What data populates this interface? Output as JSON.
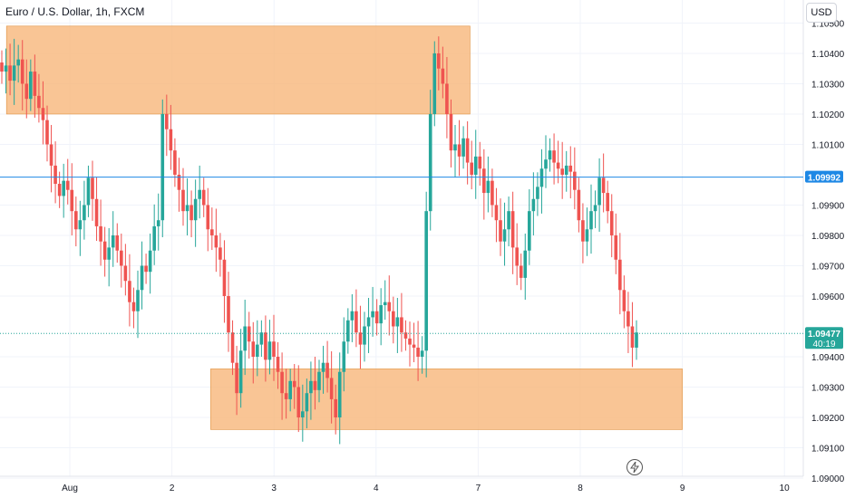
{
  "header": {
    "title": "Euro / U.S. Dollar, 1h, FXCM",
    "currency_button": "USD"
  },
  "chart_data": {
    "type": "candlestick",
    "title": "Euro / U.S. Dollar, 1h, FXCM",
    "ylim": [
      1.09,
      1.1057
    ],
    "y_ticks": [
      "1.10500",
      "1.10400",
      "1.10300",
      "1.10200",
      "1.10100",
      "1.09900",
      "1.09800",
      "1.09700",
      "1.09600",
      "1.09400",
      "1.09300",
      "1.09200",
      "1.09100",
      "1.09000"
    ],
    "x_ticks": [
      {
        "label": "Aug",
        "day": 1
      },
      {
        "label": "2",
        "day": 2
      },
      {
        "label": "3",
        "day": 3
      },
      {
        "label": "4",
        "day": 4
      },
      {
        "label": "7",
        "day": 5
      },
      {
        "label": "8",
        "day": 6
      },
      {
        "label": "9",
        "day": 7
      },
      {
        "label": "10",
        "day": 8
      }
    ],
    "price_levels": [
      {
        "value": 1.09992,
        "label": "1.09992",
        "color": "#1e88e5",
        "style": "solid"
      },
      {
        "value": 1.09477,
        "label": "1.09477",
        "sub_label": "40:19",
        "color": "#26a69a",
        "style": "dotted"
      }
    ],
    "zones": [
      {
        "x_start_day": 0.38,
        "x_end_day": 4.92,
        "y_top": 1.1049,
        "y_bottom": 1.102,
        "color": "#f7b67a"
      },
      {
        "x_start_day": 2.38,
        "x_end_day": 7.0,
        "y_top": 1.0936,
        "y_bottom": 1.0916,
        "color": "#f7b67a"
      }
    ],
    "candles_close": [
      1.1034,
      1.1036,
      1.1031,
      1.1036,
      1.1038,
      1.103,
      1.1025,
      1.1034,
      1.1026,
      1.1022,
      1.1018,
      1.101,
      1.1003,
      1.0997,
      1.0993,
      1.0998,
      1.0995,
      1.0988,
      1.0982,
      1.0985,
      1.099,
      1.0999,
      1.0992,
      1.0983,
      1.0978,
      1.0972,
      1.0976,
      1.098,
      1.0975,
      1.097,
      1.0965,
      1.0958,
      1.0955,
      1.0962,
      1.097,
      1.0968,
      1.0975,
      1.0983,
      1.0985,
      1.102,
      1.1015,
      1.1008,
      1.1,
      1.0995,
      1.0988,
      1.099,
      1.0985,
      1.0992,
      1.0995,
      1.099,
      1.0982,
      1.098,
      1.0976,
      1.0972,
      1.096,
      1.0948,
      1.0938,
      1.0928,
      1.0942,
      1.095,
      1.0945,
      1.094,
      1.0944,
      1.0948,
      1.0939,
      1.0945,
      1.094,
      1.0935,
      1.0928,
      1.0926,
      1.0932,
      1.093,
      1.092,
      1.0922,
      1.0928,
      1.0932,
      1.0929,
      1.0935,
      1.0938,
      1.0933,
      1.0926,
      1.092,
      1.0935,
      1.0945,
      1.0952,
      1.0955,
      1.0948,
      1.0944,
      1.095,
      1.0953,
      1.0955,
      1.0951,
      1.0957,
      1.0958,
      1.0955,
      1.095,
      1.0953,
      1.0948,
      1.0946,
      1.0944,
      1.0943,
      1.094,
      1.0942,
      1.0988,
      1.102,
      1.104,
      1.1035,
      1.103,
      1.102,
      1.1008,
      1.101,
      1.1006,
      1.1012,
      1.1004,
      1.1,
      1.1006,
      1.1002,
      1.0994,
      1.0998,
      1.099,
      1.0985,
      1.0978,
      1.0982,
      1.0988,
      1.0976,
      1.097,
      1.0966,
      1.0975,
      1.0988,
      1.0992,
      1.0996,
      1.1002,
      1.1005,
      1.1008,
      1.1004,
      1.1002,
      1.1,
      1.1003,
      1.1001,
      1.0995,
      1.0985,
      1.0978,
      1.0982,
      1.0988,
      1.099,
      1.0999,
      1.0994,
      1.0988,
      1.098,
      1.0972,
      1.0962,
      1.0955,
      1.095,
      1.0943,
      1.0948
    ]
  },
  "icons": {
    "replay": "lightning-icon"
  }
}
